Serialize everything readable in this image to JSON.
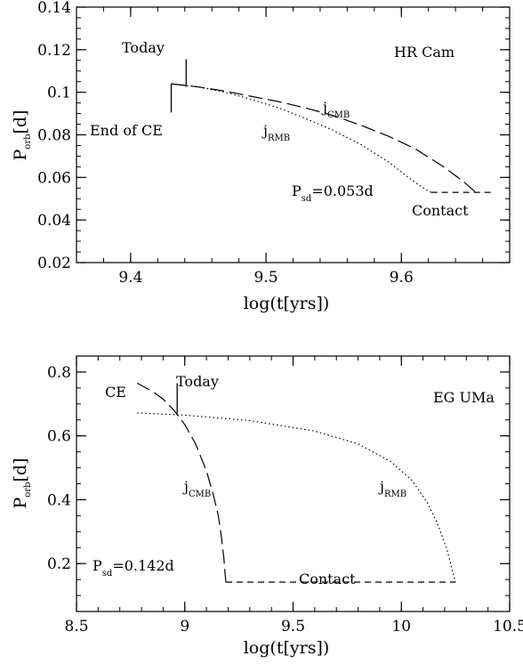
{
  "chart_data": [
    {
      "type": "line",
      "title": "HR Cam",
      "xlabel": "log(t[yrs])",
      "ylabel": "P",
      "ylabel_sub": "orb",
      "ylabel_unit": "[d]",
      "xlim": [
        9.36,
        9.68
      ],
      "ylim": [
        0.02,
        0.14
      ],
      "xticks": [
        9.4,
        9.5,
        9.6
      ],
      "xtick_labels": [
        "9.4",
        "9.5",
        "9.6"
      ],
      "yticks": [
        0.02,
        0.04,
        0.06,
        0.08,
        0.1,
        0.12,
        0.14
      ],
      "ytick_labels": [
        "0.02",
        "0.04",
        "0.06",
        "0.08",
        "0.1",
        "0.12",
        "0.14"
      ],
      "grid": false,
      "series": [
        {
          "name": "j_CMB",
          "style": "long-dashed",
          "x": [
            9.43,
            9.45,
            9.47,
            9.49,
            9.51,
            9.53,
            9.55,
            9.57,
            9.59,
            9.61,
            9.63,
            9.645,
            9.655
          ],
          "y": [
            0.104,
            0.1025,
            0.1005,
            0.098,
            0.0955,
            0.0925,
            0.089,
            0.0845,
            0.0795,
            0.0735,
            0.0655,
            0.0585,
            0.053
          ]
        },
        {
          "name": "j_RMB",
          "style": "dotted",
          "x": [
            9.43,
            9.45,
            9.47,
            9.49,
            9.51,
            9.53,
            9.55,
            9.57,
            9.59,
            9.605,
            9.615,
            9.622
          ],
          "y": [
            0.104,
            0.1025,
            0.1,
            0.0965,
            0.0925,
            0.0875,
            0.082,
            0.0755,
            0.0675,
            0.06,
            0.0555,
            0.053
          ]
        },
        {
          "name": "Psd",
          "style": "short-dashed",
          "x": [
            9.622,
            9.668
          ],
          "y": [
            0.053,
            0.053
          ]
        },
        {
          "name": "end-of-CE-marker",
          "style": "solid",
          "x": [
            9.43,
            9.43
          ],
          "y": [
            0.104,
            0.0905
          ]
        },
        {
          "name": "today-marker",
          "style": "solid",
          "x": [
            9.441,
            9.441
          ],
          "y": [
            0.1025,
            0.1155
          ]
        }
      ],
      "annotations": {
        "label": "HR Cam",
        "today": "Today",
        "end_ce": "End of CE",
        "jcmb_main": "j",
        "jcmb_sub": "CMB",
        "jrmb_main": "j",
        "jrmb_sub": "RMB",
        "psd_main": "P",
        "psd_sub": "sd",
        "psd_value": "=0.053d",
        "contact": "Contact"
      }
    },
    {
      "type": "line",
      "title": "EG UMa",
      "xlabel": "log(t[yrs])",
      "ylabel": "P",
      "ylabel_sub": "orb",
      "ylabel_unit": "[d]",
      "xlim": [
        8.5,
        10.5
      ],
      "ylim": [
        0.05,
        0.85
      ],
      "xticks": [
        8.5,
        9,
        9.5,
        10,
        10.5
      ],
      "xtick_labels": [
        "8.5",
        "9",
        "9.5",
        "10",
        "10.5"
      ],
      "yticks": [
        0.2,
        0.4,
        0.6,
        0.8
      ],
      "ytick_labels": [
        "0.2",
        "0.4",
        "0.6",
        "0.8"
      ],
      "grid": false,
      "series": [
        {
          "name": "j_CMB",
          "style": "long-dashed",
          "x": [
            8.78,
            8.85,
            8.9,
            8.95,
            9.0,
            9.05,
            9.1,
            9.13,
            9.155,
            9.17,
            9.18,
            9.186,
            9.19
          ],
          "y": [
            0.765,
            0.74,
            0.715,
            0.68,
            0.635,
            0.575,
            0.49,
            0.42,
            0.35,
            0.28,
            0.22,
            0.17,
            0.142
          ]
        },
        {
          "name": "j_RMB",
          "style": "dotted",
          "x": [
            8.78,
            9.0,
            9.3,
            9.6,
            9.8,
            9.95,
            10.05,
            10.12,
            10.17,
            10.21,
            10.235,
            10.25
          ],
          "y": [
            0.672,
            0.665,
            0.648,
            0.615,
            0.575,
            0.52,
            0.46,
            0.39,
            0.32,
            0.245,
            0.18,
            0.142
          ]
        },
        {
          "name": "Psd",
          "style": "short-dashed",
          "x": [
            9.19,
            10.25
          ],
          "y": [
            0.142,
            0.142
          ]
        },
        {
          "name": "today-marker",
          "style": "solid",
          "x": [
            8.965,
            8.965
          ],
          "y": [
            0.67,
            0.765
          ]
        }
      ],
      "annotations": {
        "label": "EG UMa",
        "today": "Today",
        "ce": "CE",
        "jcmb_main": "j",
        "jcmb_sub": "CMB",
        "jrmb_main": "j",
        "jrmb_sub": "RMB",
        "psd_main": "P",
        "psd_sub": "sd",
        "psd_value": "=0.142d",
        "contact": "Contact"
      }
    }
  ]
}
